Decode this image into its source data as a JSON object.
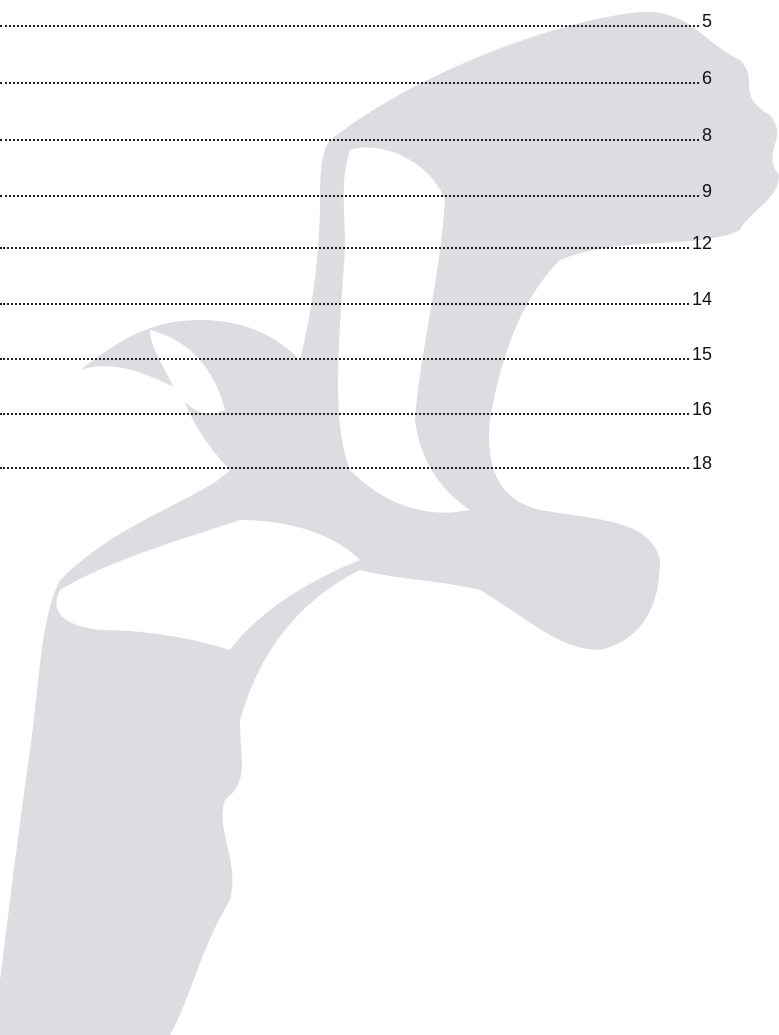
{
  "toc": {
    "entries": [
      {
        "page": 5
      },
      {
        "page": 6
      },
      {
        "page": 8
      },
      {
        "page": 9
      },
      {
        "page": 12
      },
      {
        "page": 14
      },
      {
        "page": 15
      },
      {
        "page": 16
      },
      {
        "page": 18
      }
    ]
  }
}
